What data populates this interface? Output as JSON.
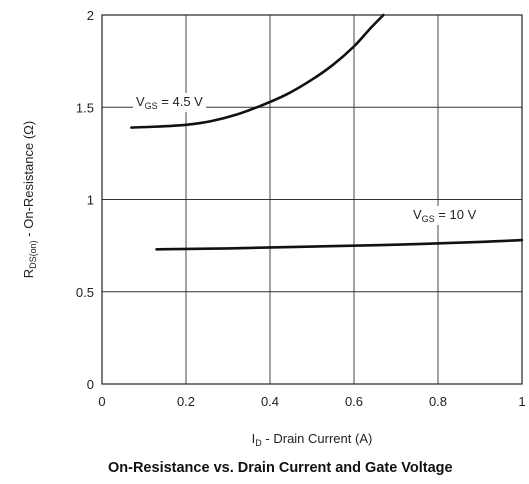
{
  "chart_data": {
    "type": "line",
    "title": "On-Resistance vs. Drain Current and Gate Voltage",
    "xlabel": {
      "main": "I",
      "sub": "D",
      "rest": " - Drain Current (A)"
    },
    "ylabel": {
      "main": "R",
      "sub": "DS(on)",
      "rest": " - On-Resistance (Ω)"
    },
    "xlim": [
      0,
      1
    ],
    "ylim": [
      0,
      2
    ],
    "x_ticks": [
      0,
      0.2,
      0.4,
      0.6,
      0.8,
      1
    ],
    "y_ticks": [
      0,
      0.5,
      1,
      1.5,
      2
    ],
    "x_tick_labels": [
      "0",
      "0.2",
      "0.4",
      "0.6",
      "0.8",
      "1"
    ],
    "y_tick_labels": [
      "0",
      "0.5",
      "1",
      "1.5",
      "2"
    ],
    "grid": true,
    "series": [
      {
        "name": "VGS = 4.5 V",
        "label": {
          "main": "V",
          "sub": "GS",
          "rest": " = 4.5 V"
        },
        "x": [
          0.07,
          0.13,
          0.2,
          0.26,
          0.32,
          0.38,
          0.44,
          0.5,
          0.55,
          0.6,
          0.64,
          0.67
        ],
        "y": [
          1.39,
          1.395,
          1.405,
          1.425,
          1.46,
          1.51,
          1.57,
          1.65,
          1.73,
          1.83,
          1.93,
          2.0
        ]
      },
      {
        "name": "VGS = 10 V",
        "label": {
          "main": "V",
          "sub": "GS",
          "rest": " = 10 V"
        },
        "x": [
          0.13,
          0.3,
          0.5,
          0.7,
          0.9,
          1.0
        ],
        "y": [
          0.73,
          0.735,
          0.745,
          0.755,
          0.77,
          0.78
        ]
      }
    ]
  }
}
